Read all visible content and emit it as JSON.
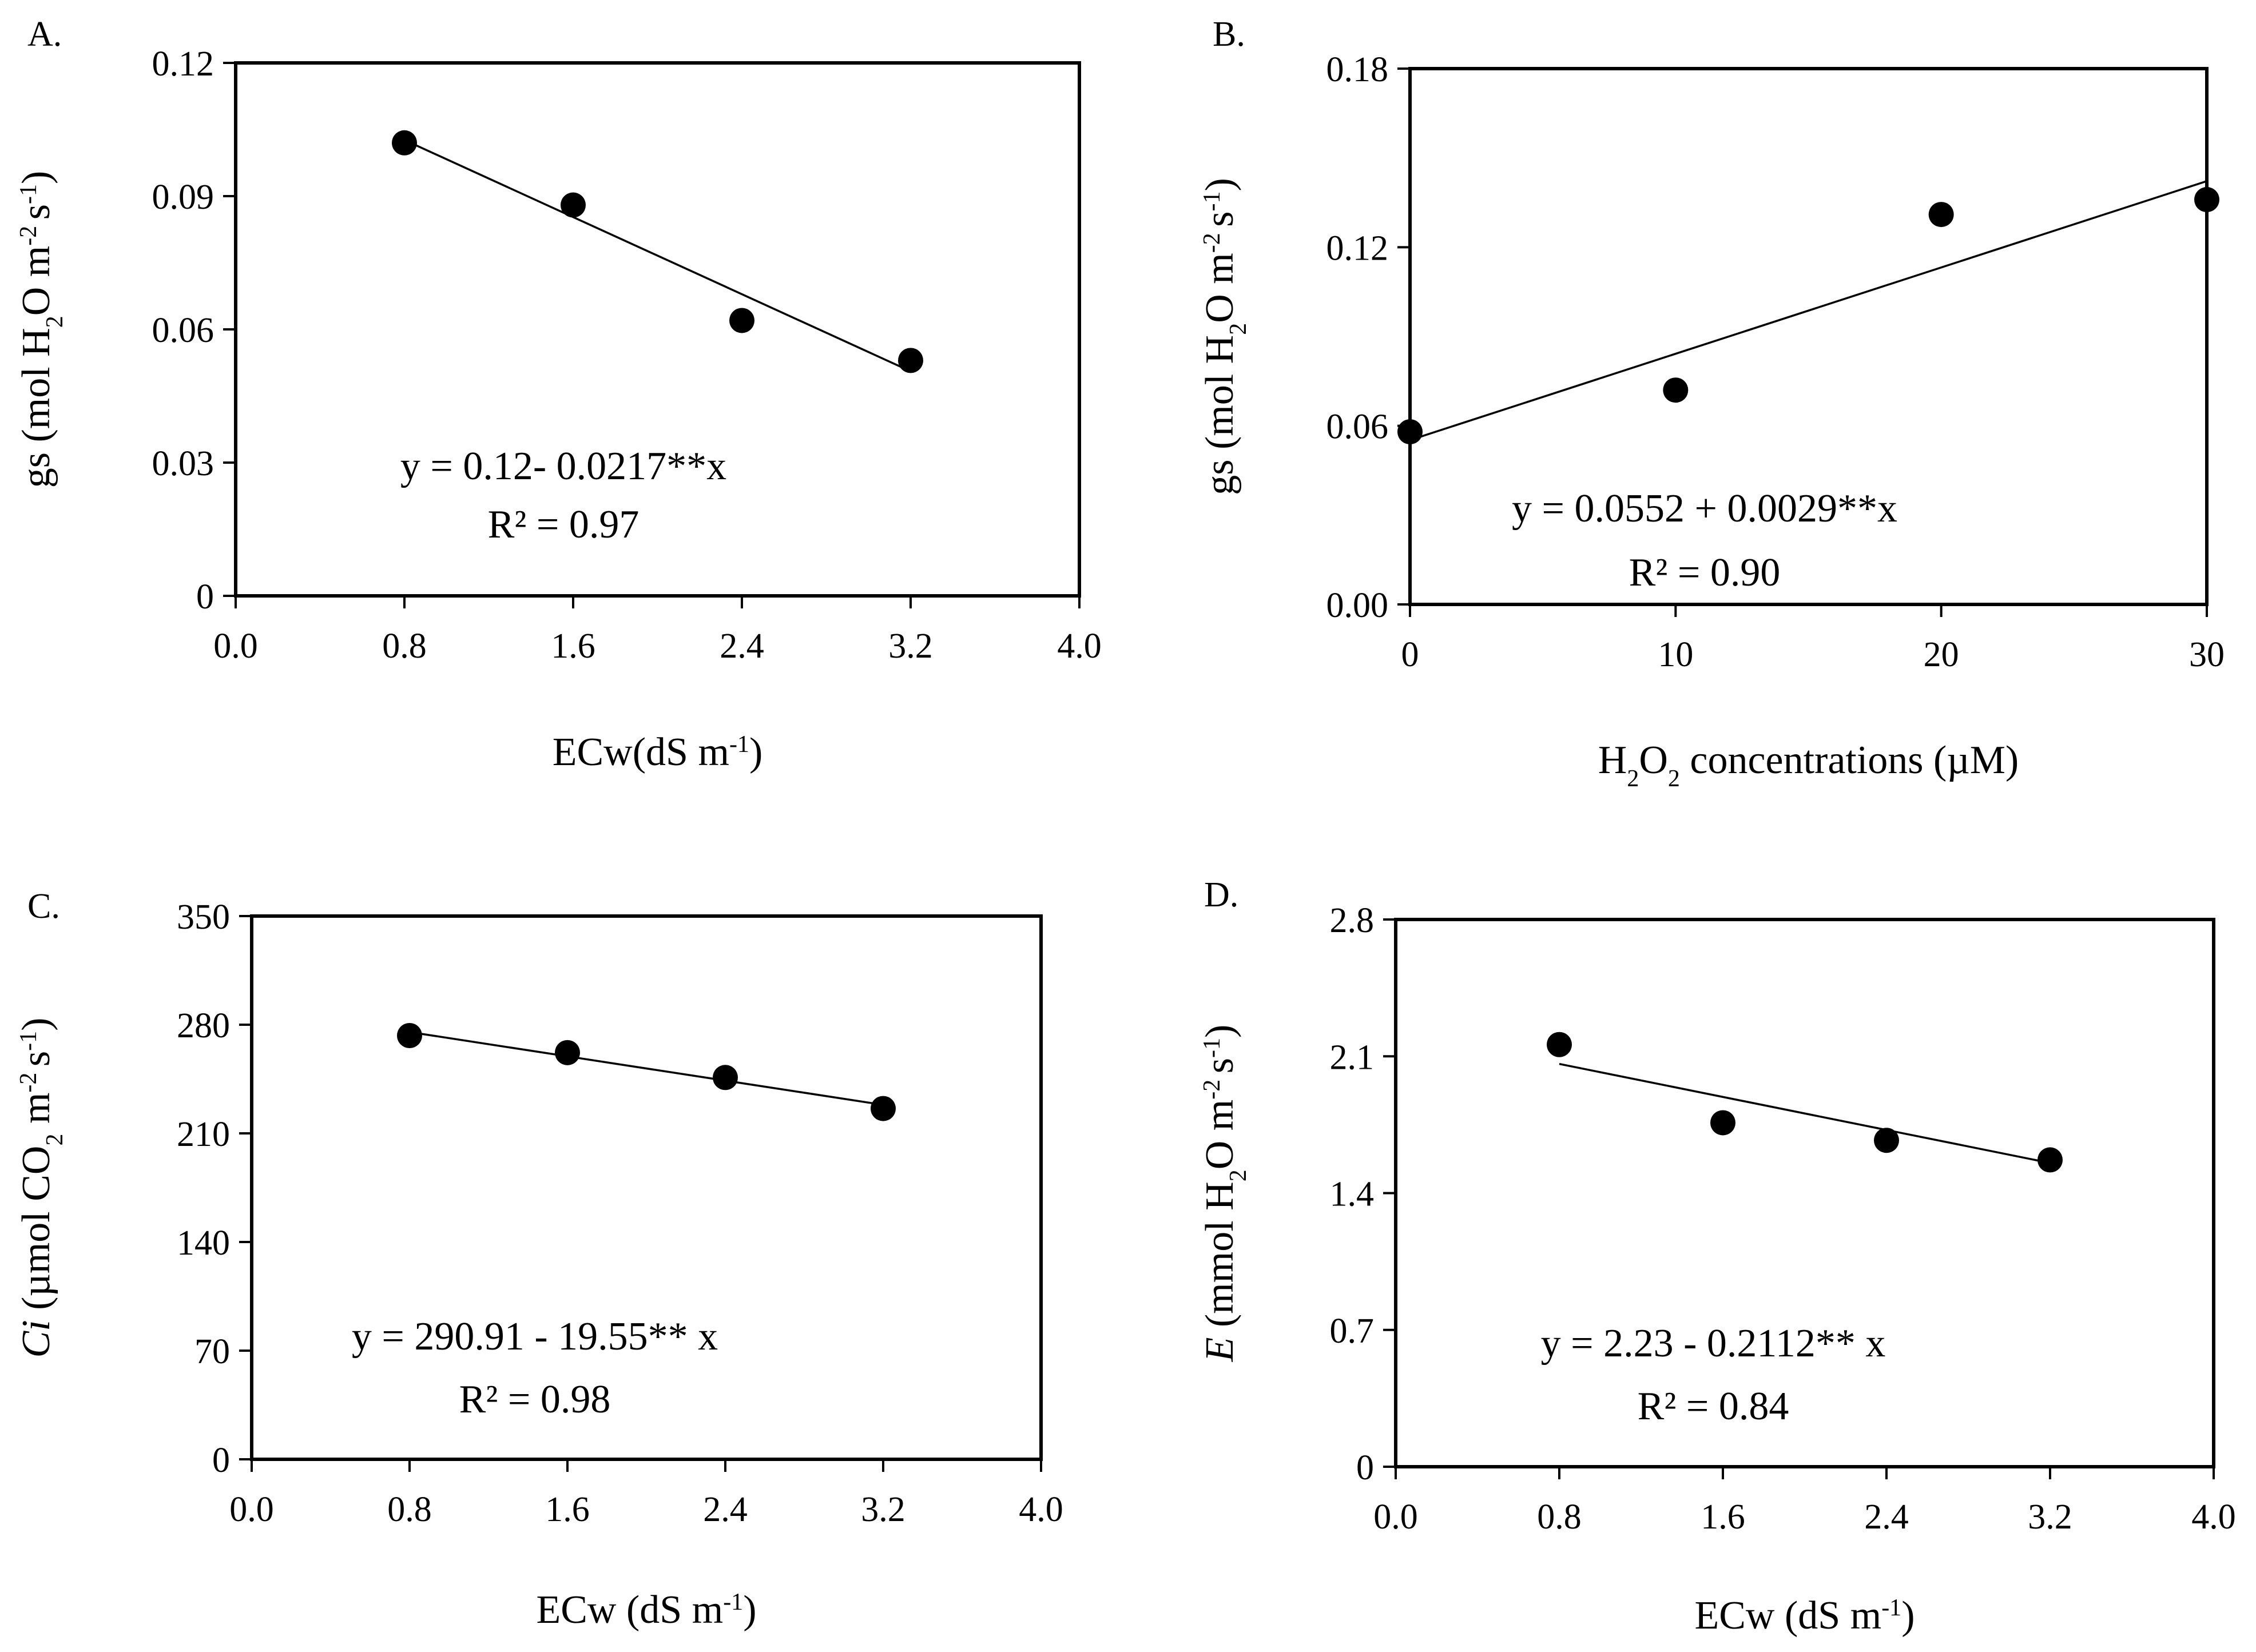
{
  "chart_data": [
    {
      "type": "scatter",
      "panel_label": "A.",
      "x": [
        0.8,
        1.6,
        2.4,
        3.2
      ],
      "y": [
        0.102,
        0.088,
        0.062,
        0.053
      ],
      "xlim": [
        0.0,
        4.0
      ],
      "ylim": [
        0,
        0.12
      ],
      "xticks": [
        "0.0",
        "0.8",
        "1.6",
        "2.4",
        "3.2",
        "4.0"
      ],
      "yticks": [
        "0",
        "0.03",
        "0.06",
        "0.09",
        "0.12"
      ],
      "xlabel": {
        "parts": [
          [
            "ECw(dS m",
            "normal"
          ],
          [
            "-1",
            "sup"
          ],
          [
            ")",
            "normal"
          ]
        ]
      },
      "ylabel": {
        "parts": [
          [
            "gs (mol H",
            "normal"
          ],
          [
            "2",
            "sub"
          ],
          [
            "O m",
            "normal"
          ],
          [
            "-2 ",
            "sup"
          ],
          [
            "s",
            "normal"
          ],
          [
            "-1",
            "sup"
          ],
          [
            ")",
            "normal"
          ]
        ]
      },
      "trendline": {
        "intercept": 0.12,
        "slope": -0.0217,
        "x_range": [
          0.8,
          3.2
        ]
      },
      "equation": "y = 0.12- 0.0217**x",
      "r2": "R² = 0.97"
    },
    {
      "type": "scatter",
      "panel_label": "B.",
      "x": [
        0,
        10,
        20,
        30
      ],
      "y": [
        0.058,
        0.072,
        0.131,
        0.136
      ],
      "xlim": [
        0,
        30
      ],
      "ylim": [
        0.0,
        0.18
      ],
      "xticks": [
        "0",
        "10",
        "20",
        "30"
      ],
      "yticks": [
        "0.00",
        "0.06",
        "0.12",
        "0.18"
      ],
      "xlabel": {
        "parts": [
          [
            "H",
            "normal"
          ],
          [
            "2",
            "sub"
          ],
          [
            "O",
            "normal"
          ],
          [
            "2",
            "sub"
          ],
          [
            " concentrations (µM)",
            "normal"
          ]
        ]
      },
      "ylabel": {
        "parts": [
          [
            "gs (mol H",
            "normal"
          ],
          [
            "2",
            "sub"
          ],
          [
            "O m",
            "normal"
          ],
          [
            "-2 ",
            "sup"
          ],
          [
            "s",
            "normal"
          ],
          [
            "-1",
            "sup"
          ],
          [
            ")",
            "normal"
          ]
        ]
      },
      "trendline": {
        "intercept": 0.0552,
        "slope": 0.0029,
        "x_range": [
          0,
          30
        ]
      },
      "equation": "y = 0.0552 + 0.0029**x",
      "r2": "R² = 0.90"
    },
    {
      "type": "scatter",
      "panel_label": "C.",
      "x": [
        0.8,
        1.6,
        2.4,
        3.2
      ],
      "y": [
        273,
        262,
        246,
        226
      ],
      "xlim": [
        0.0,
        4.0
      ],
      "ylim": [
        0,
        350
      ],
      "xticks": [
        "0.0",
        "0.8",
        "1.6",
        "2.4",
        "3.2",
        "4.0"
      ],
      "yticks": [
        "0",
        "70",
        "140",
        "210",
        "280",
        "350"
      ],
      "xlabel": {
        "parts": [
          [
            "ECw (dS m",
            "normal"
          ],
          [
            "-1",
            "sup"
          ],
          [
            ")",
            "normal"
          ]
        ]
      },
      "ylabel": {
        "parts": [
          [
            "Ci",
            "italic"
          ],
          [
            " (µmol CO",
            "normal"
          ],
          [
            "2",
            "sub"
          ],
          [
            " m",
            "normal"
          ],
          [
            "-2 ",
            "sup"
          ],
          [
            "s",
            "normal"
          ],
          [
            "-1",
            "sup"
          ],
          [
            ")",
            "normal"
          ]
        ]
      },
      "trendline": {
        "intercept": 290.91,
        "slope": -19.55,
        "x_range": [
          0.8,
          3.2
        ]
      },
      "equation": "y = 290.91 - 19.55** x",
      "r2": "R² = 0.98"
    },
    {
      "type": "scatter",
      "panel_label": "D.",
      "x": [
        0.8,
        1.6,
        2.4,
        3.2
      ],
      "y": [
        2.16,
        1.76,
        1.67,
        1.57
      ],
      "xlim": [
        0.0,
        4.0
      ],
      "ylim": [
        0,
        2.8
      ],
      "xticks": [
        "0.0",
        "0.8",
        "1.6",
        "2.4",
        "3.2",
        "4.0"
      ],
      "yticks": [
        "0",
        "0.7",
        "1.4",
        "2.1",
        "2.8"
      ],
      "xlabel": {
        "parts": [
          [
            "ECw (dS m",
            "normal"
          ],
          [
            "-1",
            "sup"
          ],
          [
            ")",
            "normal"
          ]
        ]
      },
      "ylabel": {
        "parts": [
          [
            "E",
            "italic"
          ],
          [
            " (mmol H",
            "normal"
          ],
          [
            "2",
            "sub"
          ],
          [
            "O m",
            "normal"
          ],
          [
            "-2 ",
            "sup"
          ],
          [
            "s",
            "normal"
          ],
          [
            "-1",
            "sup"
          ],
          [
            ")",
            "normal"
          ]
        ]
      },
      "trendline": {
        "intercept": 2.23,
        "slope": -0.2112,
        "x_range": [
          0.8,
          3.2
        ]
      },
      "equation": "y = 2.23 - 0.2112** x",
      "r2": "R² = 0.84"
    }
  ]
}
